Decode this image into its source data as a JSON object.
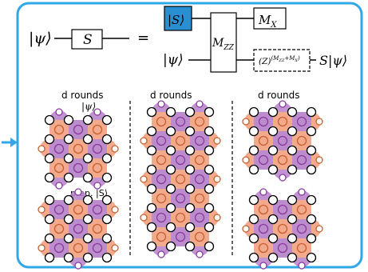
{
  "circuit": {
    "input_ket": "|ψ⟩",
    "s_gate": "S",
    "equals": "=",
    "ancilla_ket": "|S⟩",
    "input_ket_2": "|ψ⟩",
    "mzz": "M",
    "mzz_sub": "ZZ",
    "mx": "M",
    "mx_sub": "X",
    "correction_prefix": "(Z)",
    "correction_exp_base": "(M",
    "correction_exp_sub1": "ZZ",
    "correction_exp_plus": "+M",
    "correction_exp_sub2": "X",
    "correction_exp_close": ")",
    "output": "S|ψ⟩"
  },
  "panels": [
    {
      "title": "d rounds",
      "ket_label": "|ψ⟩",
      "prep_label": "prep. |S⟩"
    },
    {
      "title": "d rounds"
    },
    {
      "title": "d rounds"
    }
  ],
  "colors": {
    "frame": "#2fa8e8",
    "s_box": "#2a8fd0",
    "orange": "#f2a07f",
    "purple": "#b680c8",
    "orange_ring": "#c8612e",
    "purple_ring": "#8a3aa0"
  }
}
